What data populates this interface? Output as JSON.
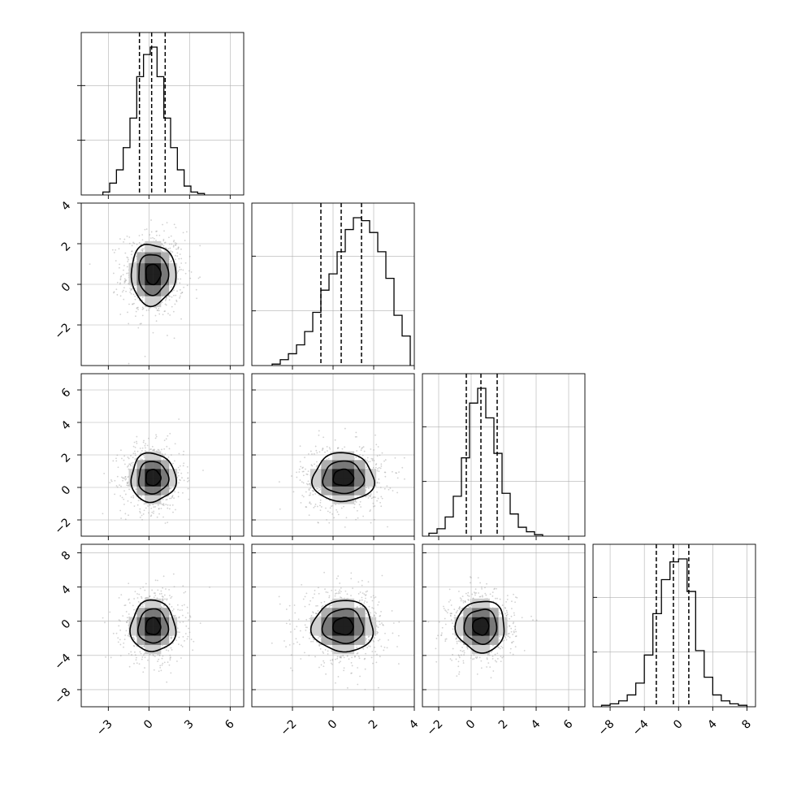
{
  "chart_data": {
    "type": "corner",
    "parameters": 4,
    "grid": true,
    "quantiles": [
      0.16,
      0.5,
      0.84
    ],
    "variables": [
      {
        "range": [
          -5,
          7
        ],
        "ticks": [
          -3,
          0,
          3,
          6
        ],
        "tick_labels": [
          "−3",
          "0",
          "3",
          "6"
        ],
        "mean": 0.3,
        "sd": 1.1,
        "quantile_values": [
          -0.7,
          0.2,
          1.2
        ],
        "hist": {
          "edges": [
            -3.4,
            -2.9,
            -2.4,
            -1.9,
            -1.4,
            -0.9,
            -0.4,
            0.1,
            0.6,
            1.1,
            1.6,
            2.1,
            2.6,
            3.1,
            3.6,
            4.1
          ],
          "counts": [
            0.02,
            0.08,
            0.17,
            0.32,
            0.52,
            0.8,
            0.95,
            1.0,
            0.8,
            0.52,
            0.32,
            0.17,
            0.06,
            0.02,
            0.01
          ]
        }
      },
      {
        "range": [
          -4,
          4
        ],
        "ticks": [
          -2,
          0,
          2,
          4
        ],
        "tick_labels": [
          "−2",
          "0",
          "2",
          "4"
        ],
        "mean": 0.5,
        "sd": 1.0,
        "quantile_values": [
          -0.6,
          0.4,
          1.4
        ],
        "hist": {
          "edges": [
            -3.0,
            -2.6,
            -2.2,
            -1.8,
            -1.4,
            -1.0,
            -0.6,
            -0.2,
            0.2,
            0.6,
            1.0,
            1.4,
            1.8,
            2.2,
            2.6,
            3.0,
            3.4,
            3.8
          ],
          "counts": [
            0.01,
            0.04,
            0.08,
            0.14,
            0.23,
            0.36,
            0.51,
            0.62,
            0.77,
            0.92,
            1.0,
            0.98,
            0.9,
            0.77,
            0.59,
            0.34,
            0.2
          ]
        }
      },
      {
        "range": [
          -3,
          7
        ],
        "ticks": [
          -2,
          0,
          2,
          4,
          6
        ],
        "tick_labels": [
          "−2",
          "0",
          "2",
          "4",
          "6"
        ],
        "mean": 0.6,
        "sd": 1.0,
        "quantile_values": [
          -0.3,
          0.6,
          1.6
        ],
        "hist": {
          "edges": [
            -2.6,
            -2.1,
            -1.6,
            -1.1,
            -0.6,
            -0.1,
            0.4,
            0.9,
            1.4,
            1.9,
            2.4,
            2.9,
            3.4,
            3.9,
            4.4
          ],
          "counts": [
            0.02,
            0.05,
            0.13,
            0.27,
            0.53,
            0.9,
            1.0,
            0.8,
            0.56,
            0.29,
            0.15,
            0.06,
            0.03,
            0.01
          ]
        }
      },
      {
        "range": [
          -10,
          9
        ],
        "ticks": [
          -8,
          -4,
          0,
          4,
          8
        ],
        "tick_labels": [
          "−8",
          "−4",
          "0",
          "4",
          "8"
        ],
        "mean": -0.6,
        "sd": 2.0,
        "quantile_values": [
          -2.6,
          -0.6,
          1.2
        ],
        "hist": {
          "edges": [
            -9.0,
            -8.0,
            -7.0,
            -6.0,
            -5.0,
            -4.0,
            -3.0,
            -2.0,
            -1.0,
            0.0,
            1.0,
            2.0,
            3.0,
            4.0,
            5.0,
            6.0,
            7.0,
            8.0
          ],
          "counts": [
            0.01,
            0.02,
            0.04,
            0.08,
            0.16,
            0.35,
            0.63,
            0.86,
            0.98,
            1.0,
            0.78,
            0.38,
            0.2,
            0.08,
            0.04,
            0.02,
            0.01
          ]
        }
      }
    ],
    "y_axis_labels": {
      "row1": [
        "−2",
        "0",
        "2",
        "4"
      ],
      "row2": [
        "−2",
        "0",
        "2",
        "4",
        "6"
      ],
      "row3": [
        "−8",
        "−4",
        "0",
        "4",
        "8"
      ]
    },
    "y_axis_label_values": {
      "row1": [
        -2,
        0,
        2,
        4
      ],
      "row2": [
        -2,
        0,
        2,
        4,
        6
      ],
      "row3": [
        -8,
        -4,
        0,
        4,
        8
      ]
    },
    "contour_levels": [
      0.5,
      1.0,
      1.5
    ],
    "scatter_points_per_panel": 700
  }
}
